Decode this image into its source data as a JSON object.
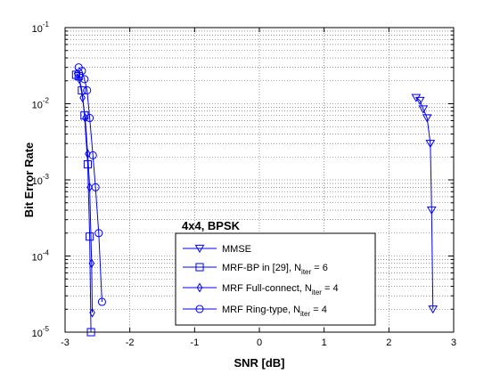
{
  "chart_data": {
    "type": "line",
    "title": "",
    "xlabel": "SNR [dB]",
    "ylabel": "Bit Error Rate",
    "xlim": [
      -3,
      3
    ],
    "ylim": [
      1e-05,
      0.1
    ],
    "yscale": "log",
    "x_ticks": [
      "-3",
      "-2",
      "-1",
      "0",
      "1",
      "2",
      "3"
    ],
    "y_tick_exponents": [
      "-5",
      "-4",
      "-3",
      "-2",
      "-1"
    ],
    "y_tick_base": "10",
    "grid": true,
    "grid_style": "dotted",
    "line_color": "#0000ff",
    "annotation": "4x4, BPSK",
    "legend_position": "bottom-center",
    "series": [
      {
        "name": "MMSE",
        "label_parts": [
          "MMSE",
          "",
          ""
        ],
        "marker": "triangle-down",
        "x": [
          2.42,
          2.48,
          2.53,
          2.59,
          2.64,
          2.66,
          2.68
        ],
        "y": [
          0.012,
          0.011,
          0.0085,
          0.0065,
          0.003,
          0.0004,
          2e-05
        ]
      },
      {
        "name": "MRF-BP in [29], N_iter = 6",
        "label_parts": [
          "MRF-BP in [29], N",
          "iter",
          " = 6"
        ],
        "marker": "square",
        "x": [
          -2.83,
          -2.79,
          -2.74,
          -2.7,
          -2.65,
          -2.62,
          -2.6
        ],
        "y": [
          0.024,
          0.023,
          0.015,
          0.007,
          0.0016,
          0.00018,
          1e-05
        ]
      },
      {
        "name": "MRF Full-connect, N_iter = 4",
        "label_parts": [
          "MRF Full-connect, N",
          "iter",
          " = 4"
        ],
        "marker": "diamond",
        "x": [
          -2.82,
          -2.78,
          -2.73,
          -2.69,
          -2.65,
          -2.62,
          -2.59,
          -2.58
        ],
        "y": [
          0.025,
          0.021,
          0.012,
          0.0065,
          0.0022,
          0.0008,
          8e-05,
          1.8e-05
        ]
      },
      {
        "name": "MRF Ring-type, N_iter = 4",
        "label_parts": [
          "MRF Ring-type, N",
          "iter",
          " = 4"
        ],
        "marker": "circle",
        "x": [
          -2.79,
          -2.74,
          -2.7,
          -2.66,
          -2.62,
          -2.57,
          -2.53,
          -2.48,
          -2.43
        ],
        "y": [
          0.03,
          0.027,
          0.021,
          0.015,
          0.0065,
          0.0021,
          0.0008,
          0.0002,
          2.5e-05
        ]
      }
    ]
  }
}
